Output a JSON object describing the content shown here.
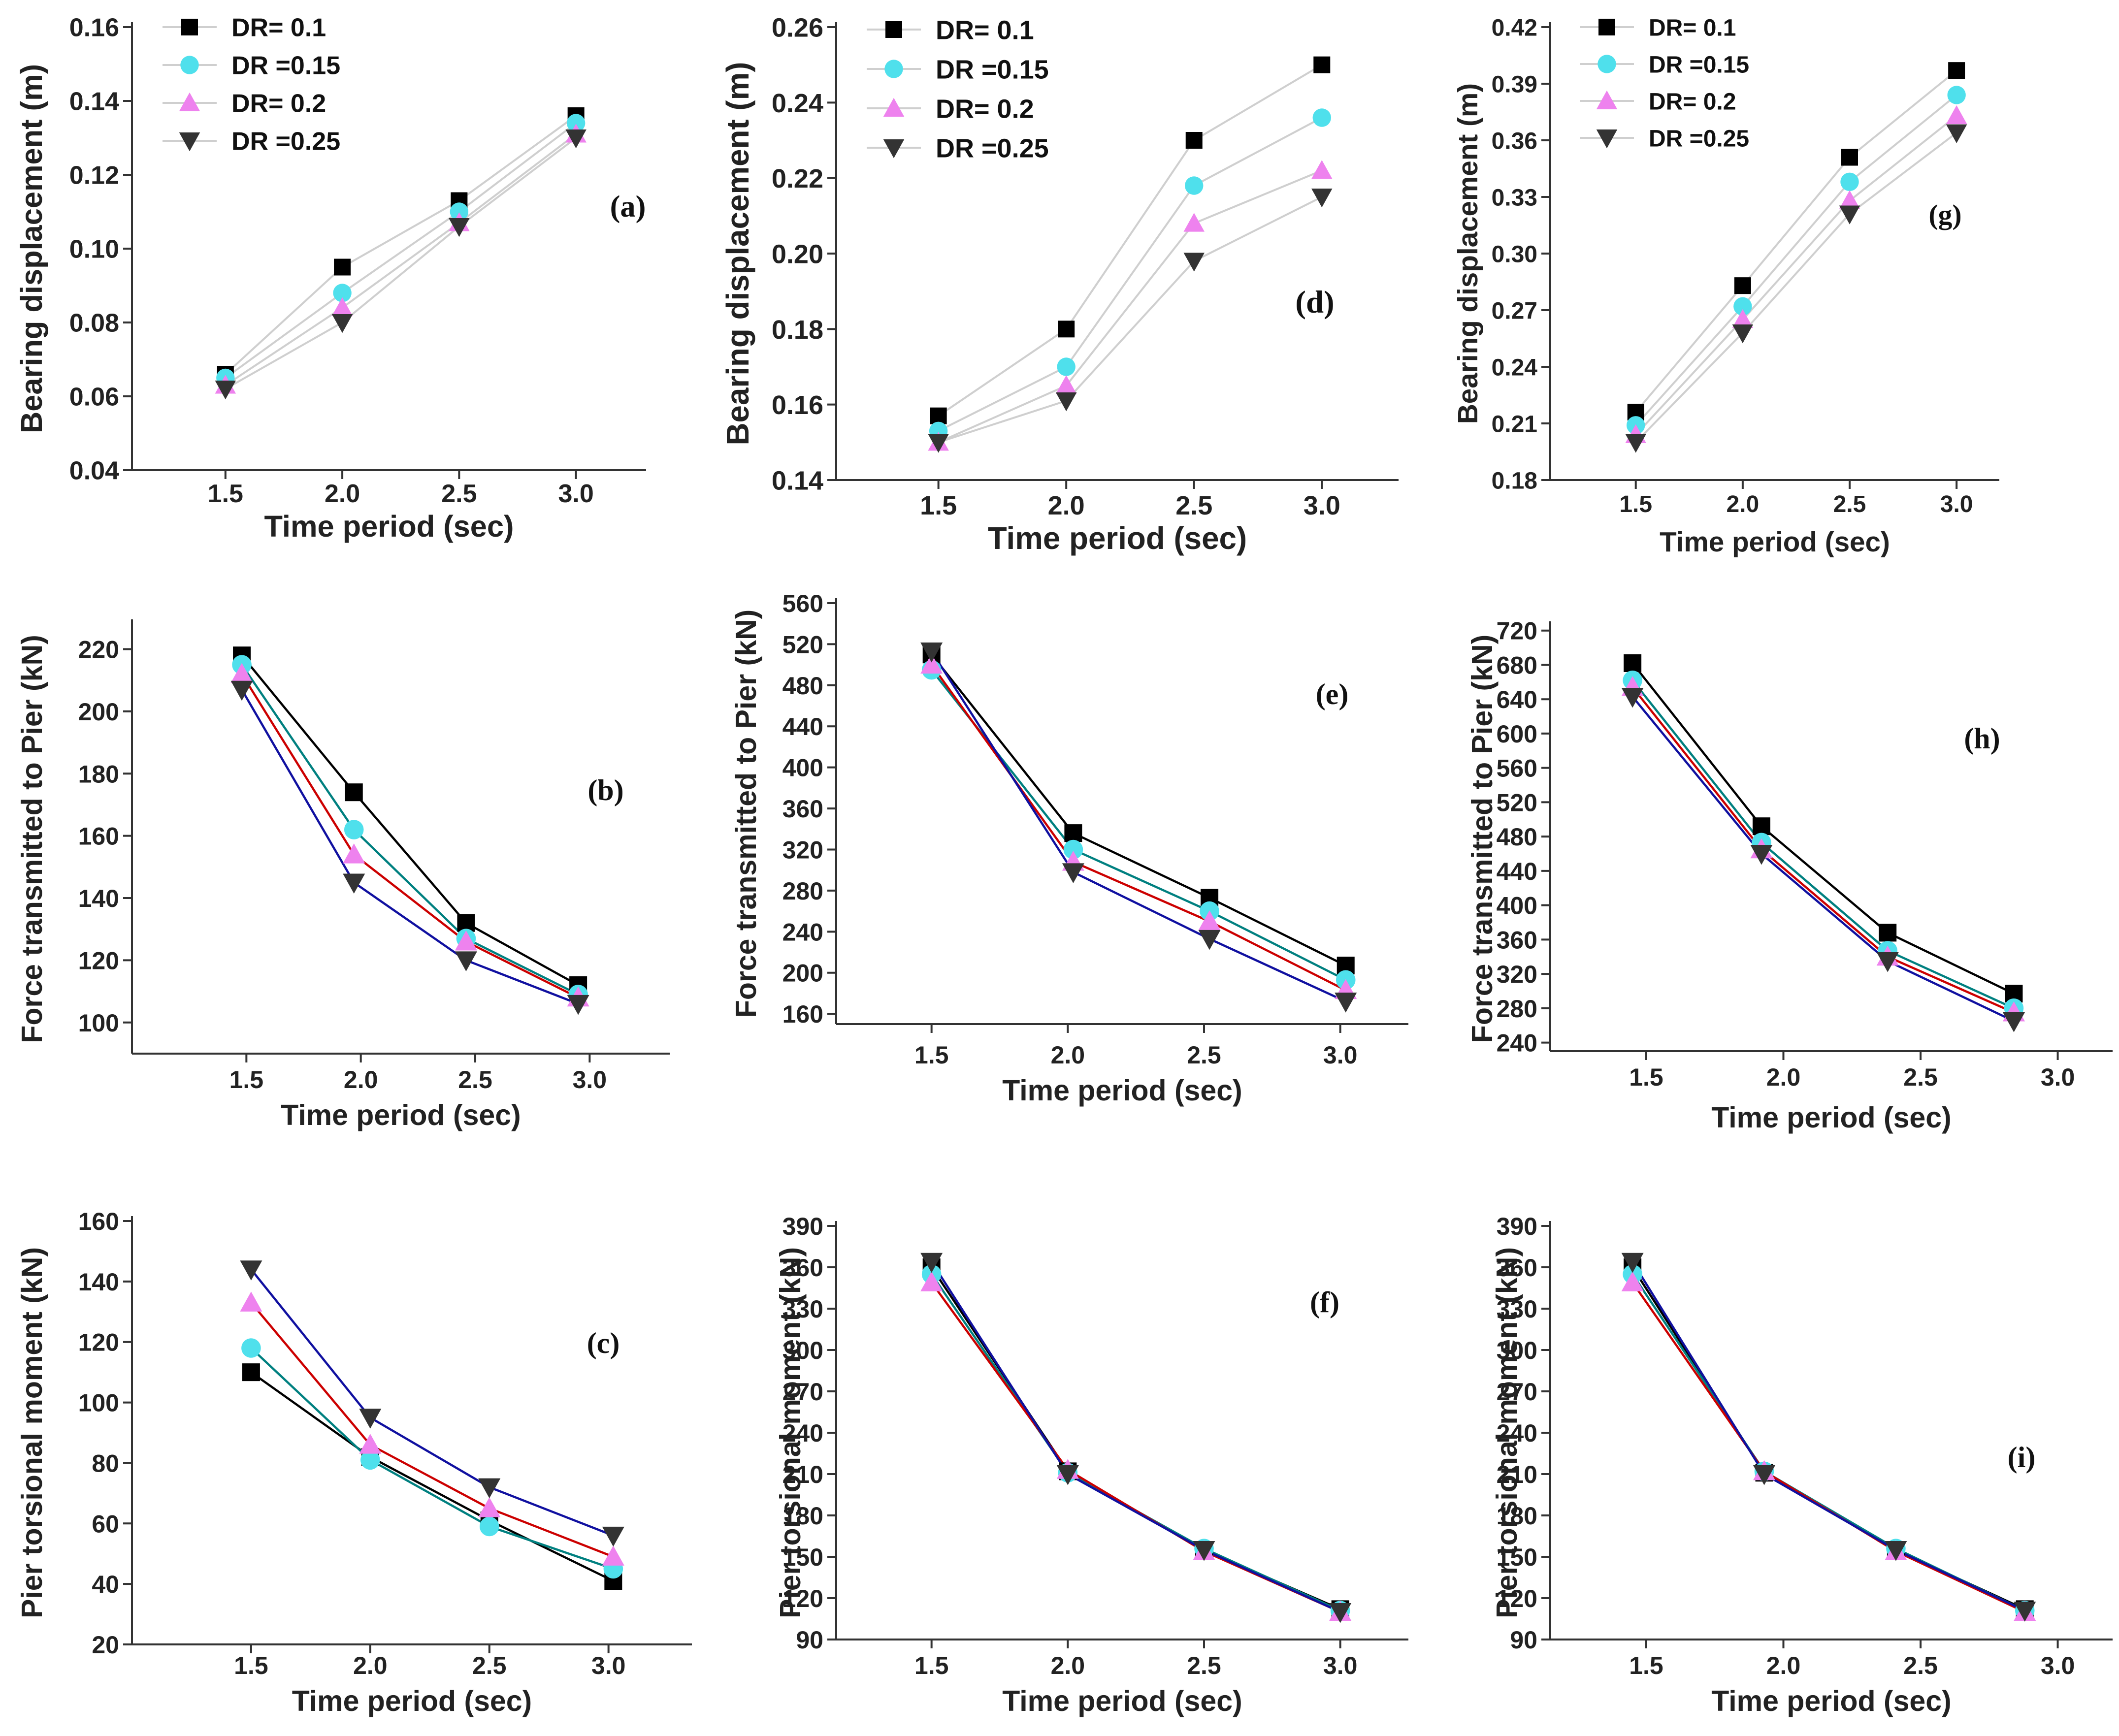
{
  "figure": {
    "series_names": [
      "DR= 0.1",
      "DR =0.15",
      "DR= 0.2",
      "DR =0.25"
    ],
    "series_styles": [
      {
        "marker": "square",
        "color": "#000000"
      },
      {
        "marker": "circle",
        "color": "#4fe0ec"
      },
      {
        "marker": "triangle-up",
        "color": "#ee82ee"
      },
      {
        "marker": "triangle-down",
        "color": "#333333"
      }
    ],
    "line_colors_displacement": [
      "#cfcfcf",
      "#cfcfcf",
      "#cfcfcf",
      "#cfcfcf"
    ],
    "line_colors_other": [
      "#000000",
      "#008080",
      "#cc0000",
      "#1010a0"
    ]
  },
  "chart_data": [
    {
      "id": "a",
      "type": "line",
      "panel_label": "(a)",
      "xlabel": "Time period (sec)",
      "ylabel": "Bearing displacement (m)",
      "x": [
        1.5,
        2.0,
        2.5,
        3.0
      ],
      "xlim": [
        1.1,
        3.3
      ],
      "xticks": [
        "1.5",
        "2.0",
        "2.5",
        "3.0"
      ],
      "ylim": [
        0.04,
        0.16
      ],
      "yticks": [
        "0.04",
        "0.06",
        "0.08",
        "0.10",
        "0.12",
        "0.14",
        "0.16"
      ],
      "legend": "top-left",
      "series": [
        {
          "name": "DR= 0.1",
          "values": [
            0.066,
            0.095,
            0.113,
            0.136
          ]
        },
        {
          "name": "DR =0.15",
          "values": [
            0.065,
            0.088,
            0.11,
            0.134
          ]
        },
        {
          "name": "DR= 0.2",
          "values": [
            0.063,
            0.084,
            0.107,
            0.131
          ]
        },
        {
          "name": "DR =0.25",
          "values": [
            0.062,
            0.08,
            0.106,
            0.13
          ]
        }
      ]
    },
    {
      "id": "d",
      "type": "line",
      "panel_label": "(d)",
      "xlabel": "Time period (sec)",
      "ylabel": "Bearing displacement (m)",
      "x": [
        1.5,
        2.0,
        2.5,
        3.0
      ],
      "xlim": [
        1.1,
        3.3
      ],
      "xticks": [
        "1.5",
        "2.0",
        "2.5",
        "3.0"
      ],
      "ylim": [
        0.14,
        0.26
      ],
      "yticks": [
        "0.14",
        "0.16",
        "0.18",
        "0.20",
        "0.22",
        "0.24",
        "0.26"
      ],
      "legend": "top-left",
      "series": [
        {
          "name": "DR= 0.1",
          "values": [
            0.157,
            0.18,
            0.23,
            0.25
          ]
        },
        {
          "name": "DR =0.15",
          "values": [
            0.153,
            0.17,
            0.218,
            0.236
          ]
        },
        {
          "name": "DR= 0.2",
          "values": [
            0.15,
            0.165,
            0.208,
            0.222
          ]
        },
        {
          "name": "DR =0.25",
          "values": [
            0.15,
            0.161,
            0.198,
            0.215
          ]
        }
      ]
    },
    {
      "id": "g",
      "type": "line",
      "panel_label": "(g)",
      "xlabel": "Time period (sec)",
      "ylabel": "Bearing displacement (m)",
      "x": [
        1.5,
        2.0,
        2.5,
        3.0
      ],
      "xlim": [
        1.1,
        3.2
      ],
      "xticks": [
        "1.5",
        "2.0",
        "2.5",
        "3.0"
      ],
      "ylim": [
        0.18,
        0.42
      ],
      "yticks": [
        "0.18",
        "0.21",
        "0.24",
        "0.27",
        "0.30",
        "0.33",
        "0.36",
        "0.39",
        "0.42"
      ],
      "legend": "top-left",
      "series": [
        {
          "name": "DR= 0.1",
          "values": [
            0.216,
            0.283,
            0.351,
            0.397
          ]
        },
        {
          "name": "DR =0.15",
          "values": [
            0.209,
            0.272,
            0.338,
            0.384
          ]
        },
        {
          "name": "DR= 0.2",
          "values": [
            0.204,
            0.265,
            0.328,
            0.373
          ]
        },
        {
          "name": "DR =0.25",
          "values": [
            0.2,
            0.258,
            0.321,
            0.364
          ]
        }
      ]
    },
    {
      "id": "b",
      "type": "line",
      "panel_label": "(b)",
      "xlabel": "Time period (sec)",
      "ylabel": "Force transmitted to Pier (kN)",
      "x": [
        1.48,
        1.97,
        2.46,
        2.95
      ],
      "xlim": [
        1.0,
        3.35
      ],
      "xticks": [
        "1.5",
        "2.0",
        "2.5",
        "3.0"
      ],
      "ylim": [
        90,
        228
      ],
      "yticks": [
        "100",
        "120",
        "140",
        "160",
        "180",
        "200",
        "220"
      ],
      "series": [
        {
          "name": "DR= 0.1",
          "values": [
            218,
            174,
            132,
            112
          ]
        },
        {
          "name": "DR =0.15",
          "values": [
            215,
            162,
            127,
            109
          ]
        },
        {
          "name": "DR= 0.2",
          "values": [
            212,
            154,
            126,
            108
          ]
        },
        {
          "name": "DR =0.25",
          "values": [
            207,
            145,
            120,
            106
          ]
        }
      ]
    },
    {
      "id": "e",
      "type": "line",
      "panel_label": "(e)",
      "xlabel": "Time period (sec)",
      "ylabel": "Force transmitted to Pier (kN)",
      "x": [
        1.5,
        2.02,
        2.52,
        3.02
      ],
      "xlim": [
        1.15,
        3.25
      ],
      "xticks": [
        "1.5",
        "2.0",
        "2.5",
        "3.0"
      ],
      "ylim": [
        150,
        560
      ],
      "yticks": [
        "160",
        "200",
        "240",
        "280",
        "320",
        "360",
        "400",
        "440",
        "480",
        "520",
        "560"
      ],
      "series": [
        {
          "name": "DR= 0.1",
          "values": [
            510,
            336,
            273,
            207
          ]
        },
        {
          "name": "DR =0.15",
          "values": [
            495,
            320,
            260,
            193
          ]
        },
        {
          "name": "DR= 0.2",
          "values": [
            500,
            308,
            250,
            183
          ]
        },
        {
          "name": "DR =0.25",
          "values": [
            513,
            298,
            233,
            172
          ]
        }
      ]
    },
    {
      "id": "h",
      "type": "line",
      "panel_label": "(h)",
      "xlabel": "Time period (sec)",
      "ylabel": "Force transmitted to Pier (kN)",
      "x": [
        1.45,
        1.92,
        2.38,
        2.84
      ],
      "xlim": [
        1.15,
        3.2
      ],
      "xticks": [
        "1.5",
        "2.0",
        "2.5",
        "3.0"
      ],
      "ylim": [
        230,
        725
      ],
      "yticks": [
        "240",
        "280",
        "320",
        "360",
        "400",
        "440",
        "480",
        "520",
        "560",
        "600",
        "640",
        "680",
        "720"
      ],
      "series": [
        {
          "name": "DR= 0.1",
          "values": [
            682,
            492,
            368,
            297
          ]
        },
        {
          "name": "DR =0.15",
          "values": [
            662,
            473,
            347,
            280
          ]
        },
        {
          "name": "DR= 0.2",
          "values": [
            654,
            465,
            340,
            275
          ]
        },
        {
          "name": "DR =0.25",
          "values": [
            643,
            460,
            335,
            265
          ]
        }
      ]
    },
    {
      "id": "c",
      "type": "line",
      "panel_label": "(c)",
      "xlabel": "Time period (sec)",
      "ylabel": "Pier torsional moment (kN)",
      "x": [
        1.5,
        2.0,
        2.5,
        3.02
      ],
      "xlim": [
        1.0,
        3.35
      ],
      "xticks": [
        "1.5",
        "2.0",
        "2.5",
        "3.0"
      ],
      "ylim": [
        20,
        160
      ],
      "yticks": [
        "20",
        "40",
        "60",
        "80",
        "100",
        "120",
        "140",
        "160"
      ],
      "series": [
        {
          "name": "DR= 0.1",
          "values": [
            110,
            82,
            61,
            41
          ]
        },
        {
          "name": "DR =0.15",
          "values": [
            118,
            81,
            59,
            45
          ]
        },
        {
          "name": "DR= 0.2",
          "values": [
            133,
            86,
            65,
            49
          ]
        },
        {
          "name": "DR =0.25",
          "values": [
            144,
            95,
            72,
            56
          ]
        }
      ]
    },
    {
      "id": "f",
      "type": "line",
      "panel_label": "(f)",
      "xlabel": "Time period (sec)",
      "ylabel": "Pier torsional moment (kN)",
      "x": [
        1.5,
        2.0,
        2.5,
        3.0
      ],
      "xlim": [
        1.15,
        3.25
      ],
      "xticks": [
        "1.5",
        "2.0",
        "2.5",
        "3.0"
      ],
      "ylim": [
        90,
        390
      ],
      "yticks": [
        "90",
        "120",
        "150",
        "180",
        "210",
        "240",
        "270",
        "300",
        "330",
        "360",
        "390"
      ],
      "series": [
        {
          "name": "DR= 0.1",
          "values": [
            360,
            212,
            155,
            112
          ]
        },
        {
          "name": "DR =0.15",
          "values": [
            355,
            211,
            156,
            111
          ]
        },
        {
          "name": "DR= 0.2",
          "values": [
            349,
            213,
            154,
            110
          ]
        },
        {
          "name": "DR =0.25",
          "values": [
            364,
            210,
            155,
            110
          ]
        }
      ]
    },
    {
      "id": "i",
      "type": "line",
      "panel_label": "(i)",
      "xlabel": "Time period (sec)",
      "ylabel": "Pier torsional moment (kN)",
      "x": [
        1.45,
        1.93,
        2.41,
        2.88
      ],
      "xlim": [
        1.15,
        3.2
      ],
      "xticks": [
        "1.5",
        "2.0",
        "2.5",
        "3.0"
      ],
      "ylim": [
        90,
        390
      ],
      "yticks": [
        "90",
        "120",
        "150",
        "180",
        "210",
        "240",
        "270",
        "300",
        "330",
        "360",
        "390"
      ],
      "series": [
        {
          "name": "DR= 0.1",
          "values": [
            360,
            211,
            155,
            112
          ]
        },
        {
          "name": "DR =0.15",
          "values": [
            355,
            212,
            156,
            111
          ]
        },
        {
          "name": "DR= 0.2",
          "values": [
            349,
            212,
            154,
            110
          ]
        },
        {
          "name": "DR =0.25",
          "values": [
            364,
            210,
            155,
            111
          ]
        }
      ]
    }
  ]
}
